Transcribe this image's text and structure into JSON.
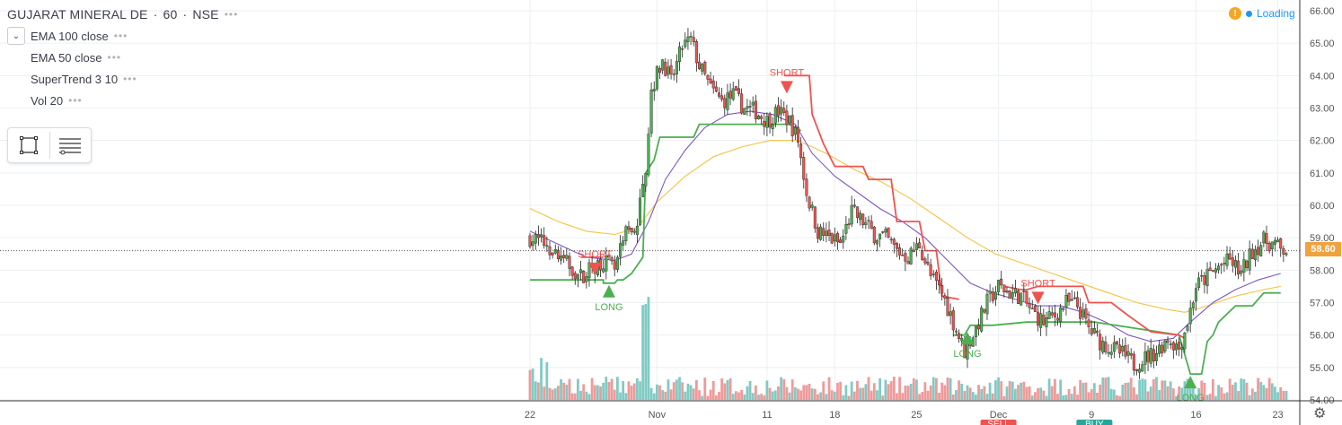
{
  "header": {
    "symbol": "GUJARAT MINERAL DE",
    "interval": "60",
    "exchange": "NSE",
    "sep": "·",
    "dots": "•••"
  },
  "indicators": [
    {
      "label": "EMA 100 close"
    },
    {
      "label": "EMA 50 close"
    },
    {
      "label": "SuperTrend 3 10"
    },
    {
      "label": "Vol 20"
    }
  ],
  "status": {
    "loading_label": "Loading",
    "warning_glyph": "!"
  },
  "last_price_label": "58.60",
  "chart_data": {
    "type": "candlestick",
    "ylim": [
      54.0,
      66.0
    ],
    "y_ticks": [
      "54.00",
      "55.00",
      "56.00",
      "57.00",
      "58.00",
      "59.00",
      "60.00",
      "61.00",
      "62.00",
      "63.00",
      "64.00",
      "65.00",
      "66.00"
    ],
    "x_ticks": [
      {
        "label": "22",
        "x": 0
      },
      {
        "label": "Nov",
        "x": 45
      },
      {
        "label": "11",
        "x": 84
      },
      {
        "label": "18",
        "x": 108
      },
      {
        "label": "25",
        "x": 137
      },
      {
        "label": "Dec",
        "x": 166
      },
      {
        "label": "9",
        "x": 199
      },
      {
        "label": "16",
        "x": 236
      },
      {
        "label": "23",
        "x": 265
      }
    ],
    "x_range": [
      0,
      268
    ],
    "last_price": 58.6,
    "price_anchors": [
      [
        0,
        59.0
      ],
      [
        6,
        58.8
      ],
      [
        12,
        58.3
      ],
      [
        18,
        57.8
      ],
      [
        22,
        58.1
      ],
      [
        26,
        58.3
      ],
      [
        30,
        58.0
      ],
      [
        34,
        59.1
      ],
      [
        38,
        59.4
      ],
      [
        41,
        61.2
      ],
      [
        43,
        63.6
      ],
      [
        47,
        64.5
      ],
      [
        50,
        63.8
      ],
      [
        54,
        64.9
      ],
      [
        57,
        65.1
      ],
      [
        60,
        64.3
      ],
      [
        64,
        63.6
      ],
      [
        68,
        63.2
      ],
      [
        72,
        63.4
      ],
      [
        76,
        63.0
      ],
      [
        80,
        62.9
      ],
      [
        84,
        62.6
      ],
      [
        88,
        62.9
      ],
      [
        92,
        62.6
      ],
      [
        95,
        62.0
      ],
      [
        98,
        60.4
      ],
      [
        102,
        59.2
      ],
      [
        106,
        59.0
      ],
      [
        110,
        58.8
      ],
      [
        114,
        59.8
      ],
      [
        118,
        59.5
      ],
      [
        122,
        59.1
      ],
      [
        126,
        59.0
      ],
      [
        130,
        58.6
      ],
      [
        134,
        58.4
      ],
      [
        138,
        58.8
      ],
      [
        142,
        57.8
      ],
      [
        146,
        57.3
      ],
      [
        150,
        56.4
      ],
      [
        154,
        55.5
      ],
      [
        158,
        56.2
      ],
      [
        162,
        57.0
      ],
      [
        166,
        57.5
      ],
      [
        170,
        57.3
      ],
      [
        174,
        57.2
      ],
      [
        178,
        56.7
      ],
      [
        182,
        56.4
      ],
      [
        186,
        56.6
      ],
      [
        190,
        57.0
      ],
      [
        194,
        56.9
      ],
      [
        198,
        56.2
      ],
      [
        202,
        55.8
      ],
      [
        206,
        55.6
      ],
      [
        210,
        55.4
      ],
      [
        214,
        55.1
      ],
      [
        218,
        55.3
      ],
      [
        222,
        55.5
      ],
      [
        226,
        55.9
      ],
      [
        230,
        55.6
      ],
      [
        233,
        56.4
      ],
      [
        236,
        57.5
      ],
      [
        240,
        57.8
      ],
      [
        244,
        58.1
      ],
      [
        248,
        58.3
      ],
      [
        252,
        57.9
      ],
      [
        256,
        58.6
      ],
      [
        260,
        58.9
      ],
      [
        264,
        58.8
      ],
      [
        266,
        58.6
      ]
    ],
    "ema100": [
      [
        0,
        59.9
      ],
      [
        10,
        59.5
      ],
      [
        20,
        59.2
      ],
      [
        30,
        59.1
      ],
      [
        38,
        59.3
      ],
      [
        45,
        60.1
      ],
      [
        55,
        60.9
      ],
      [
        65,
        61.5
      ],
      [
        75,
        61.8
      ],
      [
        85,
        62.0
      ],
      [
        95,
        62.0
      ],
      [
        105,
        61.6
      ],
      [
        115,
        61.1
      ],
      [
        125,
        60.7
      ],
      [
        135,
        60.2
      ],
      [
        145,
        59.6
      ],
      [
        155,
        59.0
      ],
      [
        165,
        58.5
      ],
      [
        175,
        58.2
      ],
      [
        185,
        57.9
      ],
      [
        195,
        57.6
      ],
      [
        205,
        57.3
      ],
      [
        215,
        57.0
      ],
      [
        225,
        56.8
      ],
      [
        232,
        56.7
      ],
      [
        240,
        56.9
      ],
      [
        250,
        57.2
      ],
      [
        260,
        57.4
      ],
      [
        266,
        57.5
      ]
    ],
    "ema50": [
      [
        0,
        59.2
      ],
      [
        10,
        58.8
      ],
      [
        20,
        58.4
      ],
      [
        30,
        58.3
      ],
      [
        36,
        58.5
      ],
      [
        42,
        59.5
      ],
      [
        48,
        60.8
      ],
      [
        55,
        61.7
      ],
      [
        62,
        62.4
      ],
      [
        70,
        62.8
      ],
      [
        78,
        62.9
      ],
      [
        86,
        62.8
      ],
      [
        94,
        62.5
      ],
      [
        100,
        61.6
      ],
      [
        108,
        60.9
      ],
      [
        116,
        60.4
      ],
      [
        124,
        59.9
      ],
      [
        132,
        59.5
      ],
      [
        140,
        59.0
      ],
      [
        148,
        58.3
      ],
      [
        156,
        57.6
      ],
      [
        164,
        57.3
      ],
      [
        172,
        57.1
      ],
      [
        180,
        56.9
      ],
      [
        188,
        56.9
      ],
      [
        196,
        56.7
      ],
      [
        204,
        56.4
      ],
      [
        212,
        56.0
      ],
      [
        220,
        55.8
      ],
      [
        228,
        55.9
      ],
      [
        234,
        56.4
      ],
      [
        242,
        57.0
      ],
      [
        250,
        57.4
      ],
      [
        258,
        57.7
      ],
      [
        266,
        57.9
      ]
    ],
    "supertrend_up": [
      [
        [
          0,
          57.7
        ],
        [
          26,
          57.7
        ],
        [
          26,
          57.6
        ],
        [
          30,
          57.6
        ],
        [
          31,
          57.7
        ],
        [
          33,
          57.7
        ],
        [
          36,
          57.9
        ],
        [
          40,
          58.4
        ],
        [
          41,
          61.0
        ],
        [
          44,
          61.4
        ],
        [
          46,
          62.1
        ],
        [
          58,
          62.1
        ],
        [
          60,
          62.5
        ],
        [
          66,
          62.5
        ],
        [
          76,
          62.5
        ],
        [
          92,
          62.5
        ],
        [
          96,
          62.3
        ]
      ],
      [
        [
          150,
          56.0
        ],
        [
          154,
          56.0
        ],
        [
          156,
          56.3
        ],
        [
          164,
          56.3
        ],
        [
          176,
          56.4
        ],
        [
          200,
          56.4
        ],
        [
          215,
          56.2
        ],
        [
          230,
          56.0
        ],
        [
          234,
          54.8
        ],
        [
          238,
          54.8
        ],
        [
          240,
          55.8
        ],
        [
          242,
          56.0
        ],
        [
          244,
          56.4
        ],
        [
          250,
          56.9
        ],
        [
          256,
          56.9
        ],
        [
          260,
          57.3
        ],
        [
          266,
          57.3
        ]
      ]
    ],
    "supertrend_down": [
      [
        [
          18,
          58.4
        ],
        [
          26,
          58.4
        ]
      ],
      [
        [
          90,
          64.0
        ],
        [
          99,
          64.0
        ],
        [
          100,
          62.8
        ],
        [
          104,
          61.9
        ],
        [
          108,
          61.2
        ],
        [
          118,
          61.2
        ],
        [
          120,
          60.8
        ],
        [
          128,
          60.8
        ],
        [
          130,
          59.5
        ],
        [
          138,
          59.5
        ],
        [
          140,
          58.6
        ],
        [
          144,
          58.6
        ],
        [
          146,
          57.2
        ],
        [
          152,
          57.1
        ]
      ],
      [
        [
          168,
          57.5
        ],
        [
          174,
          57.4
        ],
        [
          176,
          57.4
        ],
        [
          180,
          57.5
        ],
        [
          196,
          57.5
        ],
        [
          198,
          57.0
        ],
        [
          206,
          57.0
        ],
        [
          212,
          56.6
        ],
        [
          220,
          56.1
        ],
        [
          230,
          56.0
        ],
        [
          232,
          55.9
        ]
      ]
    ],
    "signals": [
      {
        "type": "long",
        "x": 28,
        "label": "LONG"
      },
      {
        "type": "short",
        "x": 23,
        "label": "SHORT"
      },
      {
        "type": "short",
        "x": 91,
        "label": "SHORT"
      },
      {
        "type": "long",
        "x": 155,
        "label": "LONG"
      },
      {
        "type": "short",
        "x": 180,
        "label": "SHORT"
      },
      {
        "type": "long",
        "x": 234,
        "label": "LONG"
      }
    ],
    "bottom_markers": [
      {
        "x": 166,
        "label": "SELL",
        "color": "#ef5350"
      },
      {
        "x": 200,
        "label": "BUY",
        "color": "#26a69a"
      }
    ],
    "colors": {
      "up": "#4caf50",
      "down": "#ef5350",
      "ema100": "#f5c342",
      "ema50": "#7e57c2",
      "st_up": "#4caf50",
      "st_down": "#ef5350",
      "vol_up": "#80cbc4",
      "vol_down": "#ef9a9a",
      "grid": "#eceff2",
      "axis_text": "#555555",
      "price_line": "#555555"
    }
  }
}
